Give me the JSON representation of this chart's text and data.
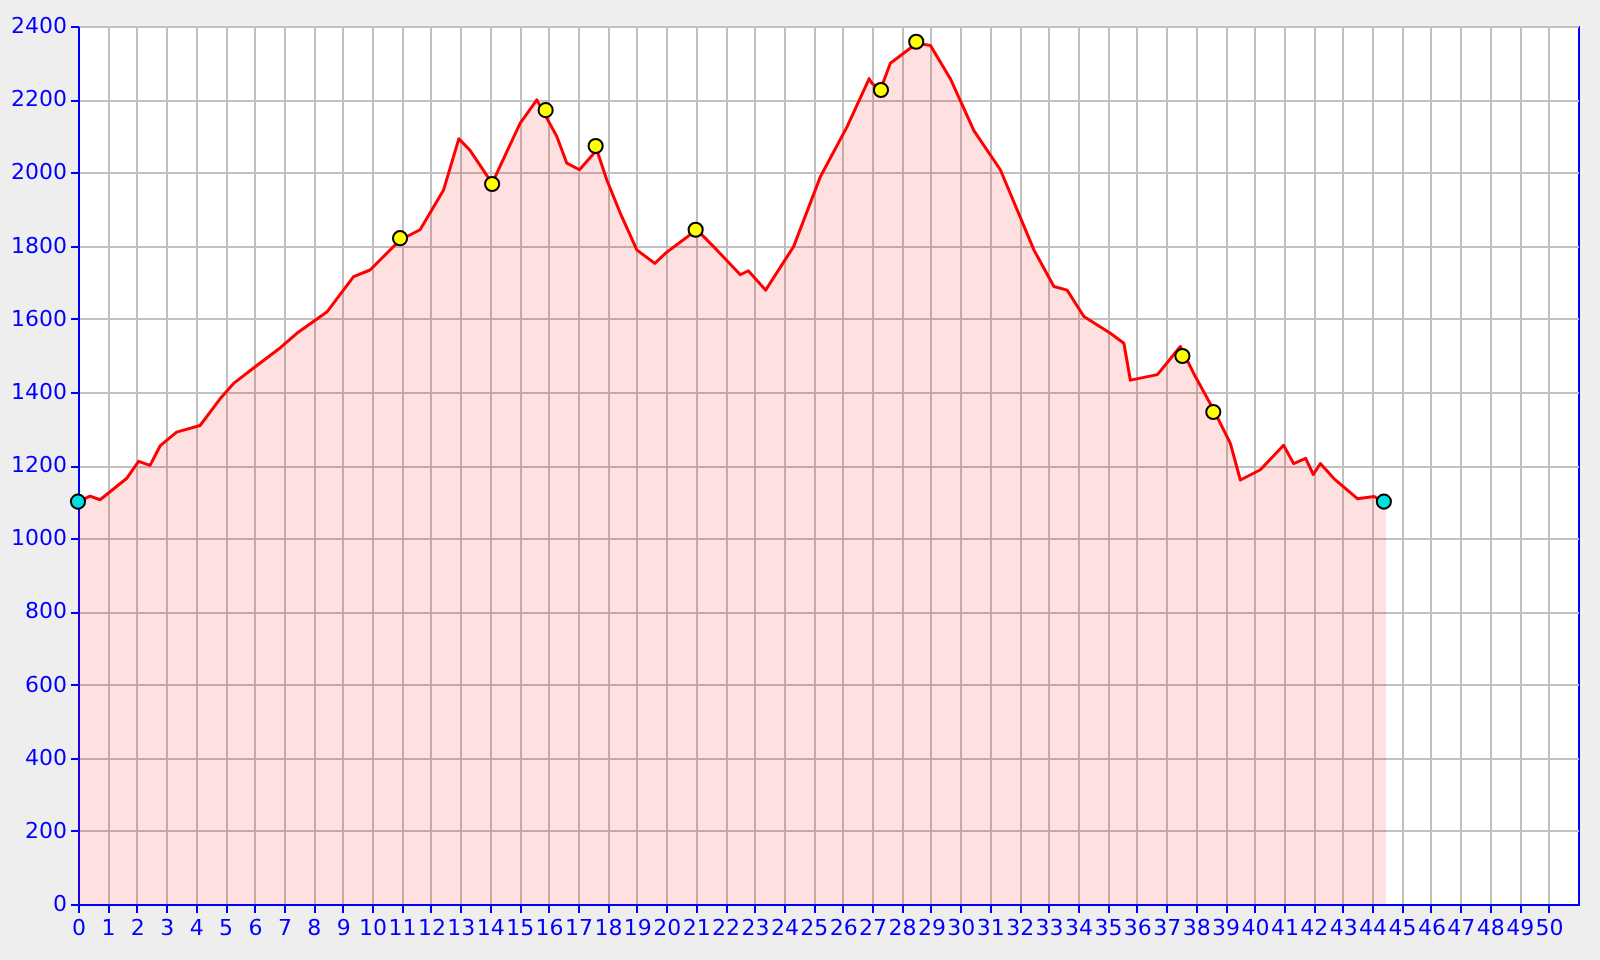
{
  "chart_data": {
    "type": "area",
    "xlim": [
      0,
      51
    ],
    "ylim": [
      0,
      2400
    ],
    "xticks": [
      0,
      1,
      2,
      3,
      4,
      5,
      6,
      7,
      8,
      9,
      10,
      11,
      12,
      13,
      14,
      15,
      16,
      17,
      18,
      19,
      20,
      21,
      22,
      23,
      24,
      25,
      26,
      27,
      28,
      29,
      30,
      31,
      32,
      33,
      34,
      35,
      36,
      37,
      38,
      39,
      40,
      41,
      42,
      43,
      44,
      45,
      46,
      47,
      48,
      49,
      50
    ],
    "yticks": [
      0,
      200,
      400,
      600,
      800,
      1000,
      1200,
      1400,
      1600,
      1800,
      2000,
      2200,
      2400
    ],
    "grid": true,
    "marker": "none",
    "series": [
      {
        "type": "area",
        "color": "#ff0000",
        "x": [
          0,
          0.41,
          0.75,
          1.65,
          2.06,
          2.45,
          2.79,
          3.35,
          4.15,
          4.83,
          5.29,
          5.97,
          6.87,
          7.44,
          8.46,
          9.37,
          9.93,
          10.95,
          11.63,
          12.43,
          12.95,
          13.33,
          14.08,
          15.03,
          15.6,
          16.28,
          16.62,
          17.05,
          17.64,
          17.98,
          18.44,
          19.0,
          19.61,
          20.02,
          21.04,
          21.61,
          22.52,
          22.79,
          23.38,
          24.33,
          25.24,
          26.15,
          26.9,
          27.0,
          27.28,
          27.62,
          28.52,
          28.98,
          29.66,
          30.46,
          31.36,
          32.5,
          33.18,
          33.63,
          34.2,
          35.1,
          35.56,
          35.78,
          36.7,
          37.48,
          37.93,
          38.61,
          39.18,
          39.52,
          40.2,
          40.99,
          41.33,
          41.74,
          42.0,
          42.24,
          42.7,
          43.5,
          44.07,
          44.47
        ],
        "values": [
          1100,
          1115,
          1105,
          1163,
          1210,
          1199,
          1252,
          1290,
          1308,
          1381,
          1423,
          1465,
          1520,
          1560,
          1618,
          1715,
          1733,
          1815,
          1843,
          1952,
          2092,
          2060,
          1970,
          2134,
          2198,
          2098,
          2025,
          2007,
          2061,
          1979,
          1888,
          1788,
          1751,
          1782,
          1843,
          1797,
          1720,
          1731,
          1678,
          1797,
          1988,
          2125,
          2256,
          2243,
          2225,
          2298,
          2353,
          2347,
          2256,
          2114,
          2007,
          1788,
          1688,
          1678,
          1606,
          1560,
          1533,
          1432,
          1447,
          1524,
          1451,
          1351,
          1259,
          1159,
          1187,
          1254,
          1204,
          1218,
          1174,
          1204,
          1163,
          1108,
          1114,
          1095
        ]
      },
      {
        "type": "scatter",
        "marker": "circle",
        "x": [
          0,
          10.95,
          14.08,
          15.9,
          17.6,
          21.0,
          27.3,
          28.5,
          37.55,
          38.6,
          44.4
        ],
        "values": [
          1100,
          1820,
          1968,
          2170,
          2072,
          1843,
          2225,
          2357,
          1498,
          1345,
          1100
        ],
        "colors": [
          "#00e0e0",
          "#ffff00",
          "#ffff00",
          "#ffff00",
          "#ffff00",
          "#ffff00",
          "#ffff00",
          "#ffff00",
          "#ffff00",
          "#ffff00",
          "#00e0e0"
        ]
      }
    ]
  }
}
